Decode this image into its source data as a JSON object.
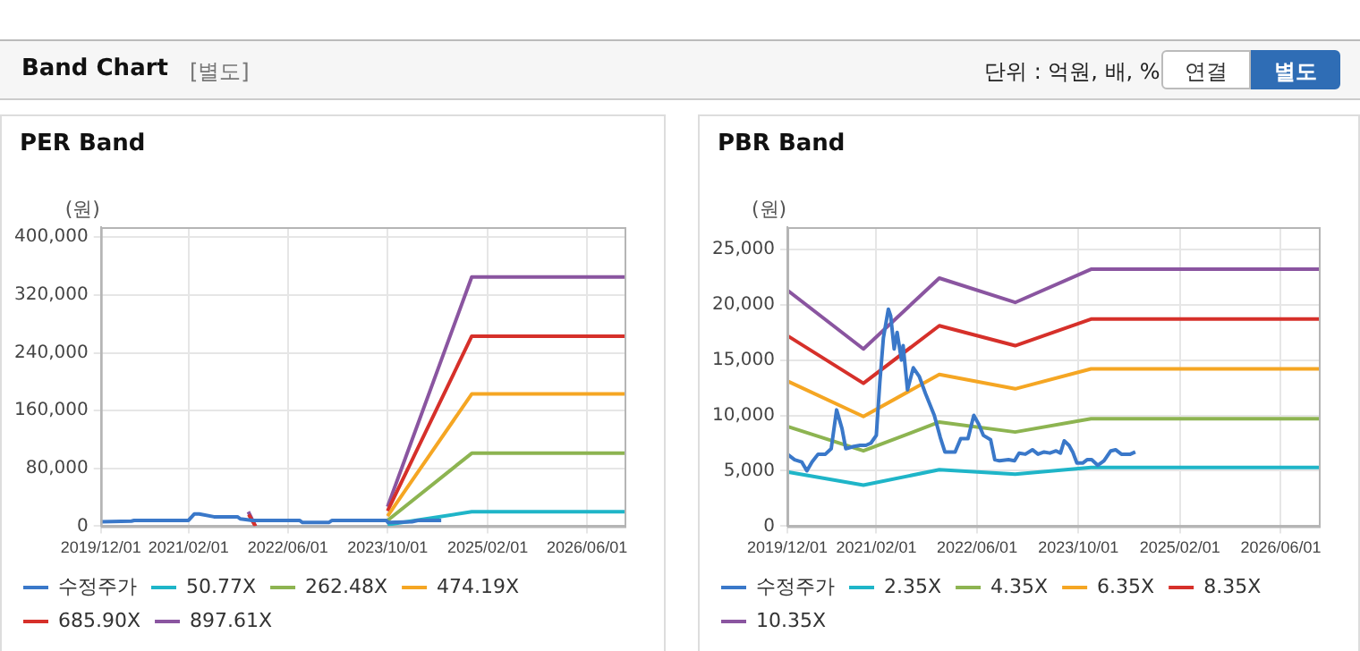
{
  "chart_data": [
    {
      "type": "other",
      "title": "Band Chart",
      "annotations": [
        "[별도]",
        "단위 : 억원, 배, %",
        "연결",
        "별도"
      ]
    },
    {
      "type": "line",
      "title": "PER Band",
      "ylabel": "(원)",
      "legend": "bottom",
      "grid": true,
      "marker": "none",
      "line_style": "solid",
      "xlim": [
        "2019-12-01",
        "2026-12-01"
      ],
      "ylim": [
        0,
        414000
      ],
      "xticks": [
        {
          "value": "2019-12-01",
          "label": "2019/12/01"
        },
        {
          "value": "2021-02-01",
          "label": "2021/02/01"
        },
        {
          "value": "2022-06-01",
          "label": "2022/06/01"
        },
        {
          "value": "2023-10-01",
          "label": "2023/10/01"
        },
        {
          "value": "2025-02-01",
          "label": "2025/02/01"
        },
        {
          "value": "2026-06-01",
          "label": "2026/06/01"
        }
      ],
      "yticks": [
        {
          "value": 0,
          "label": "0"
        },
        {
          "value": 80000,
          "label": "80,000"
        },
        {
          "value": 160000,
          "label": "160,000"
        },
        {
          "value": 240000,
          "label": "240,000"
        },
        {
          "value": 320000,
          "label": "320,000"
        },
        {
          "value": 400000,
          "label": "400,000"
        }
      ],
      "series": [
        {
          "name": "수정주가",
          "color": "#3a78c9",
          "x": [
            "2019-12-01",
            "2020-04-28",
            "2020-05-12",
            "2021-02-01",
            "2021-03-02",
            "2021-03-25",
            "2021-06-05",
            "2021-09-28",
            "2021-10-13",
            "2021-12-10",
            "2022-07-28",
            "2022-08-12",
            "2022-12-18",
            "2023-01-03",
            "2023-09-25",
            "2023-10-04",
            "2024-01-28",
            "2024-02-25",
            "2024-06-19"
          ],
          "values": [
            6000,
            7000,
            8000,
            8000,
            17000,
            17000,
            13000,
            13000,
            10000,
            8000,
            8000,
            5000,
            5000,
            8000,
            8000,
            5000,
            6000,
            8000,
            8000
          ]
        },
        {
          "name": "50.77X",
          "color": "#1fb5c8",
          "x": [
            "2023-10-01",
            "2024-11-15",
            "2026-12-01"
          ],
          "values": [
            2000,
            20000,
            20000
          ]
        },
        {
          "name": "262.48X",
          "color": "#8db451",
          "x": [
            "2023-10-01",
            "2024-11-15",
            "2026-12-01"
          ],
          "values": [
            8000,
            101000,
            101000
          ]
        },
        {
          "name": "474.19X",
          "color": "#f5a623",
          "x": [
            "2023-10-01",
            "2024-11-15",
            "2026-12-01"
          ],
          "values": [
            14000,
            183000,
            183000
          ]
        },
        {
          "name": "685.90X",
          "color": "#d6302a",
          "x": [
            "2021-11-22",
            "2021-12-25",
            "2023-01-01",
            "2023-10-01",
            "2024-11-15",
            "2026-12-01"
          ],
          "values": [
            16000,
            0,
            null,
            21000,
            263000,
            263000
          ]
        },
        {
          "name": "897.61X",
          "color": "#8a55a0",
          "x": [
            "2021-11-20",
            "2021-12-25",
            "2023-01-01",
            "2023-10-01",
            "2024-11-15",
            "2026-12-01"
          ],
          "values": [
            20000,
            0,
            null,
            27000,
            345000,
            345000
          ]
        }
      ]
    },
    {
      "type": "line",
      "title": "PBR Band",
      "ylabel": "(원)",
      "legend": "bottom",
      "grid": true,
      "marker": "none",
      "line_style": "solid",
      "xlim": [
        "2019-12-01",
        "2026-12-01"
      ],
      "ylim": [
        0,
        27000
      ],
      "xticks": [
        {
          "value": "2019-12-01",
          "label": "2019/12/01"
        },
        {
          "value": "2021-02-01",
          "label": "2021/02/01"
        },
        {
          "value": "2022-06-01",
          "label": "2022/06/01"
        },
        {
          "value": "2023-10-01",
          "label": "2023/10/01"
        },
        {
          "value": "2025-02-01",
          "label": "2025/02/01"
        },
        {
          "value": "2026-06-01",
          "label": "2026/06/01"
        }
      ],
      "yticks": [
        {
          "value": 0,
          "label": "0"
        },
        {
          "value": 5000,
          "label": "5,000"
        },
        {
          "value": 10000,
          "label": "10,000"
        },
        {
          "value": 15000,
          "label": "15,000"
        },
        {
          "value": 20000,
          "label": "20,000"
        },
        {
          "value": 25000,
          "label": "25,000"
        }
      ],
      "series": [
        {
          "name": "수정주가",
          "color": "#3a78c9",
          "x": [
            "2019-12-01",
            "2020-01-05",
            "2020-02-08",
            "2020-03-04",
            "2020-03-29",
            "2020-04-27",
            "2020-06-01",
            "2020-06-29",
            "2020-07-25",
            "2020-08-20",
            "2020-09-07",
            "2020-10-16",
            "2020-11-15",
            "2020-12-13",
            "2021-01-06",
            "2021-02-01",
            "2021-02-18",
            "2021-03-07",
            "2021-03-31",
            "2021-04-11",
            "2021-04-28",
            "2021-05-12",
            "2021-06-02",
            "2021-06-10",
            "2021-07-01",
            "2021-07-29",
            "2021-08-27",
            "2021-09-25",
            "2021-11-07",
            "2021-12-06",
            "2021-12-28",
            "2022-02-15",
            "2022-03-14",
            "2022-04-18",
            "2022-05-16",
            "2022-06-09",
            "2022-07-01",
            "2022-08-05",
            "2022-08-25",
            "2022-09-17",
            "2022-10-30",
            "2022-11-28",
            "2022-12-20",
            "2023-01-19",
            "2023-02-22",
            "2023-03-21",
            "2023-04-19",
            "2023-05-17",
            "2023-06-16",
            "2023-07-07",
            "2023-07-25",
            "2023-08-17",
            "2023-09-04",
            "2023-09-24",
            "2023-10-22",
            "2023-11-12",
            "2023-12-04",
            "2024-01-02",
            "2024-02-01",
            "2024-03-05",
            "2024-03-28",
            "2024-04-25",
            "2024-06-07",
            "2024-07-01"
          ],
          "values": [
            6500,
            6000,
            5800,
            5000,
            5800,
            6500,
            6500,
            7000,
            10500,
            8800,
            7000,
            7200,
            7300,
            7300,
            7500,
            8200,
            13000,
            17000,
            19600,
            19000,
            16000,
            17500,
            15000,
            16300,
            12300,
            14300,
            13500,
            12000,
            10000,
            8000,
            6700,
            6700,
            7900,
            7900,
            10000,
            9200,
            8200,
            7800,
            6000,
            5900,
            6000,
            5900,
            6600,
            6500,
            6900,
            6500,
            6700,
            6600,
            6800,
            6600,
            7700,
            7300,
            6700,
            5700,
            5700,
            6000,
            6000,
            5500,
            5900,
            6800,
            6900,
            6500,
            6500,
            6700
          ]
        },
        {
          "name": "2.35X",
          "color": "#1fb5c8",
          "x": [
            "2019-12-01",
            "2020-12-01",
            "2021-12-01",
            "2022-12-01",
            "2023-12-01",
            "2026-12-01"
          ],
          "values": [
            4900,
            3700,
            5100,
            4700,
            5300,
            5300
          ]
        },
        {
          "name": "4.35X",
          "color": "#8db451",
          "x": [
            "2019-12-01",
            "2020-12-01",
            "2021-12-01",
            "2022-12-01",
            "2023-12-01",
            "2026-12-01"
          ],
          "values": [
            9000,
            6800,
            9400,
            8500,
            9700,
            9700
          ]
        },
        {
          "name": "6.35X",
          "color": "#f5a623",
          "x": [
            "2019-12-01",
            "2020-12-01",
            "2021-12-01",
            "2022-12-01",
            "2023-12-01",
            "2026-12-01"
          ],
          "values": [
            13100,
            9900,
            13700,
            12400,
            14200,
            14200
          ]
        },
        {
          "name": "8.35X",
          "color": "#d6302a",
          "x": [
            "2019-12-01",
            "2020-12-01",
            "2021-12-01",
            "2022-12-01",
            "2023-12-01",
            "2026-12-01"
          ],
          "values": [
            17200,
            12900,
            18100,
            16300,
            18700,
            18700
          ]
        },
        {
          "name": "10.35X",
          "color": "#8a55a0",
          "x": [
            "2019-12-01",
            "2020-12-01",
            "2021-12-01",
            "2022-12-01",
            "2023-12-01",
            "2026-12-01"
          ],
          "values": [
            21300,
            16000,
            22400,
            20200,
            23200,
            23200
          ]
        }
      ]
    }
  ]
}
